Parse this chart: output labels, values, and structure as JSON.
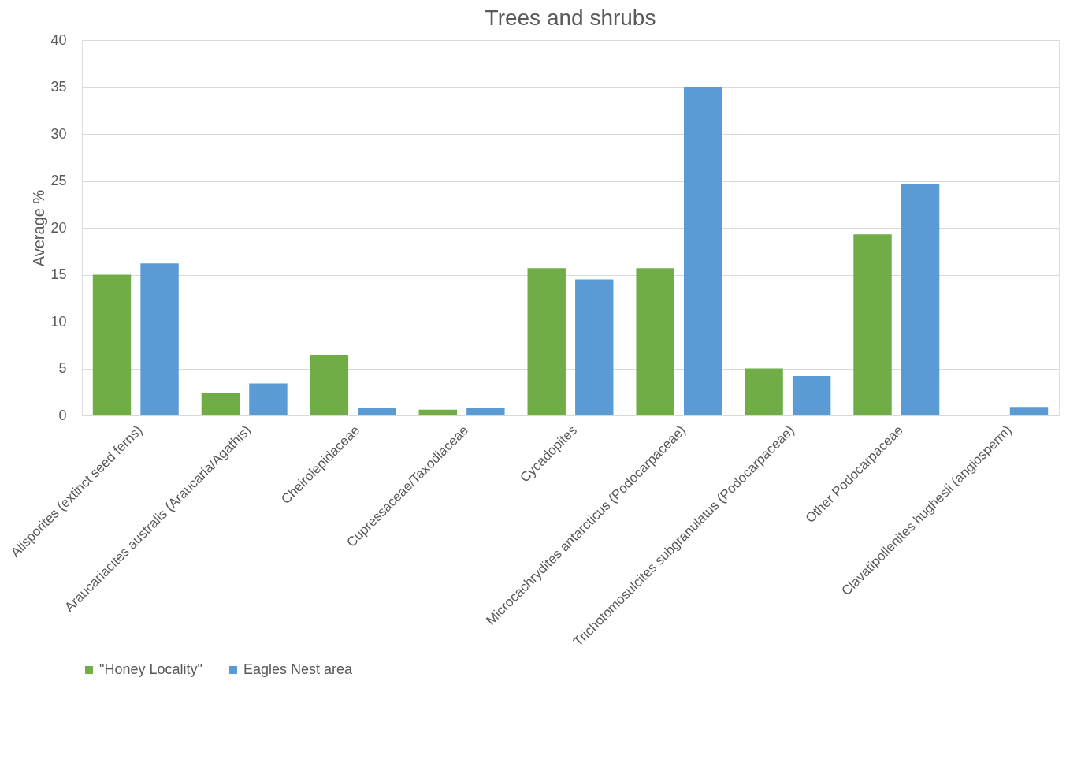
{
  "chart_data": {
    "type": "bar",
    "title": "Trees and shrubs",
    "ylabel": "Average %",
    "categories": [
      "Alisporites (extinct seed ferns)",
      "Araucariacites australis (Araucaria/Agathis)",
      "Cheirolepidaceae",
      "Cupressaceae/Taxodiaceae",
      "Cycadopites",
      "Microcachrydites antarcticus (Podocarpaceae)",
      "Trichotomosulcites subgranulatus (Podocarpaceae)",
      "Other Podocarpaceae",
      "Clavatipollenites hughesii (angiosperm)"
    ],
    "series": [
      {
        "name": "\"Honey Locality\"",
        "color": "#70ad47",
        "values": [
          15.0,
          2.4,
          6.4,
          0.6,
          15.7,
          15.7,
          5.0,
          19.3,
          null
        ]
      },
      {
        "name": "Eagles Nest area",
        "color": "#5b9bd5",
        "values": [
          16.2,
          3.4,
          0.8,
          0.8,
          14.5,
          35.0,
          4.2,
          24.7,
          0.9
        ]
      }
    ],
    "ylim": [
      0,
      40
    ],
    "yticks": [
      0,
      5,
      10,
      15,
      20,
      25,
      30,
      35,
      40
    ],
    "grid": "y",
    "legend": "bottom"
  }
}
